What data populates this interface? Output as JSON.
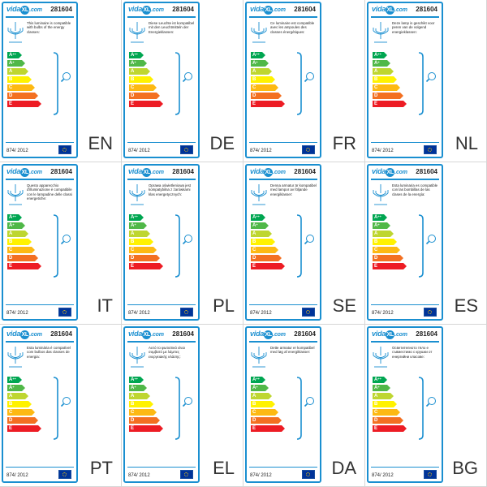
{
  "brand": {
    "logo_left": "vida",
    "logo_mark": "XL",
    "logo_right": ".com"
  },
  "product_code": "281604",
  "regulation": "874/ 2012",
  "energy_classes": [
    {
      "label": "A",
      "sup": "++",
      "color": "#00a651"
    },
    {
      "label": "A",
      "sup": "+",
      "color": "#50b848"
    },
    {
      "label": "A",
      "sup": "",
      "color": "#bed630"
    },
    {
      "label": "B",
      "sup": "",
      "color": "#fff200"
    },
    {
      "label": "C",
      "sup": "",
      "color": "#fdb913"
    },
    {
      "label": "D",
      "sup": "",
      "color": "#f37021"
    },
    {
      "label": "E",
      "sup": "",
      "color": "#ed1c24"
    }
  ],
  "labels": [
    {
      "lang": "EN",
      "text": "This luminaire is compatible with bulbs of the energy classes:"
    },
    {
      "lang": "DE",
      "text": "Diese Leuchte ist kompatibel mit den Leuchtmitteln der Energieklassen:"
    },
    {
      "lang": "FR",
      "text": "Ce luminaire est compatible avec les ampoules des classes énergétiques:"
    },
    {
      "lang": "NL",
      "text": "Deze lamp is geschikt voor peren van de volgend energieklassen:"
    },
    {
      "lang": "IT",
      "text": "Questo apparecchio d'illuminazione è compatibile con le lampadine delle classi energetiche:"
    },
    {
      "lang": "PL",
      "text": "Oprawa oświetleniowa jest kompatybilna z żarówkami klas energetycznych:"
    },
    {
      "lang": "SE",
      "text": "Denna armatur är kompatibel med lampor av följande energiklasser:"
    },
    {
      "lang": "ES",
      "text": "Esta luminaria es compatible con las bombillas de las clases de la energía:"
    },
    {
      "lang": "PT",
      "text": "Esta luminária é compatível com bulbos das classes de energia:"
    },
    {
      "lang": "EL",
      "text": "Αυτό το φωτιστικό είναι συμβατό με λάμπες ενεργειακής κλάσης:"
    },
    {
      "lang": "DA",
      "text": "Dette armatur er kompatibel med løg af energiklasser:"
    },
    {
      "lang": "BG",
      "text": "Осветителното тяло е съвместимо с крушки от енергийни класове:"
    }
  ]
}
